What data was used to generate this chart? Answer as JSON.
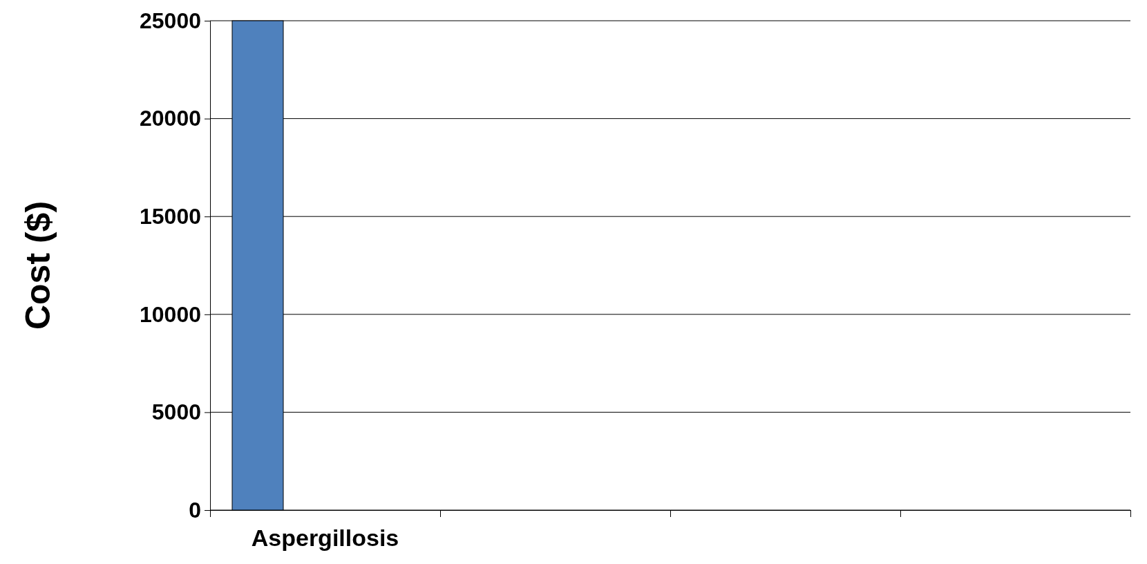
{
  "chart_data": {
    "type": "bar",
    "ylabel": "Cost ($)",
    "categories": [
      "Aspergillosis",
      null,
      null,
      null
    ],
    "values": [
      25000,
      null,
      null,
      null
    ],
    "color": "#4f81bd",
    "ylim": [
      0,
      25000
    ],
    "yticks": [
      0,
      5000,
      10000,
      15000,
      20000,
      25000
    ],
    "grid": "y"
  }
}
